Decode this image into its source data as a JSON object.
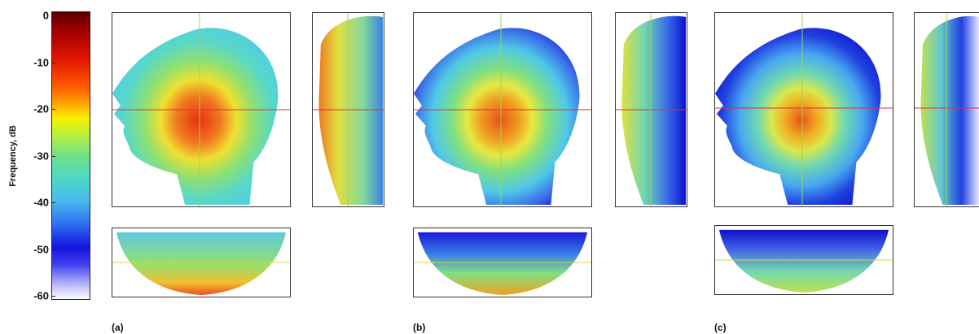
{
  "colorbar": {
    "label": "Frequency, dB",
    "ticks": [
      "0",
      "-10",
      "-20",
      "-30",
      "-40",
      "-50",
      "-60"
    ]
  },
  "panels": [
    {
      "caption": "(a)"
    },
    {
      "caption": "(b)"
    },
    {
      "caption": "(c)"
    }
  ],
  "colors": {
    "crosshair_horizontal": "#e03040",
    "crosshair_vertical": "#a0d060",
    "frame": "#333333"
  }
}
